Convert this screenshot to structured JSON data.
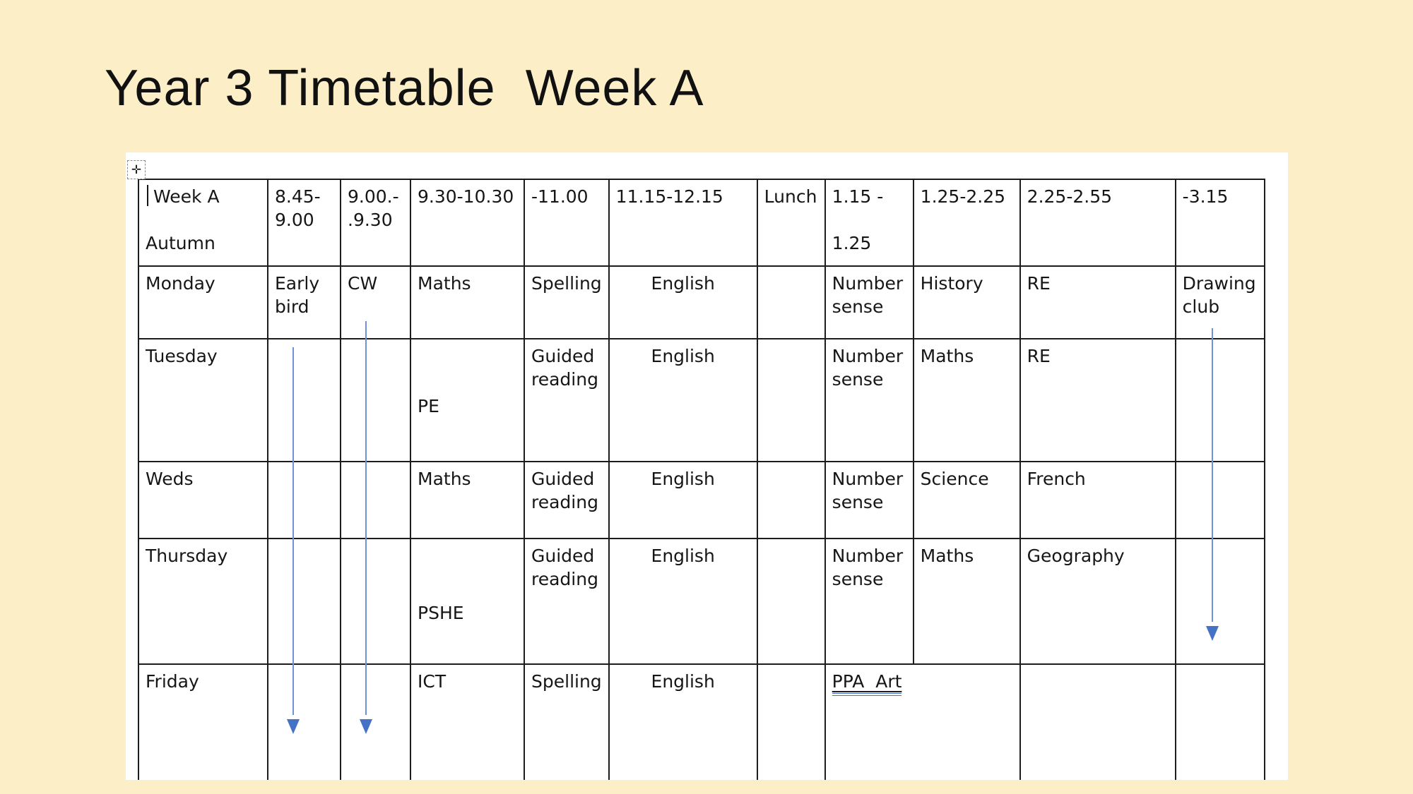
{
  "slide": {
    "title": "Year 3 Timetable  Week A"
  },
  "colors": {
    "background": "#FCEFC8",
    "page": "#FFFFFF",
    "table_border": "#1C1C1C",
    "arrow_line": "#6E92D8",
    "arrow_head": "#4472C4",
    "underline_blue": "#4472C4"
  },
  "icons": {
    "table_move_handle": "✛"
  },
  "table": {
    "header": [
      "Week A\n\nAutumn",
      "8.45-\n9.00",
      "9.00.-\n.9.30",
      "9.30-10.30",
      "-11.00",
      "11.15-12.15",
      "Lunch",
      "1.15 -\n\n1.25",
      "1.25-2.25",
      "2.25-2.55",
      "-3.15"
    ],
    "rows": [
      {
        "day": "Monday",
        "cells": [
          "Early bird",
          "CW",
          "Maths",
          "Spelling",
          "English",
          "",
          "Number sense",
          "History",
          "RE",
          "Drawing club"
        ]
      },
      {
        "day": "Tuesday",
        "cells": [
          "",
          "",
          "PE",
          "Guided reading",
          "English",
          "",
          "Number sense",
          "Maths",
          "RE",
          ""
        ]
      },
      {
        "day": "Weds",
        "cells": [
          "",
          "",
          "Maths",
          "Guided reading",
          "English",
          "",
          "Number sense",
          "Science",
          "French",
          ""
        ]
      },
      {
        "day": "Thursday",
        "cells": [
          "",
          "",
          "PSHE",
          "Guided reading",
          "English",
          "",
          "Number sense",
          "Maths",
          "Geography",
          ""
        ]
      },
      {
        "day": "Friday",
        "cells": [
          "",
          "",
          "ICT",
          "Spelling",
          "English",
          "",
          {
            "text": "PPA  Art",
            "colspan": 2,
            "underline": true
          },
          "",
          ""
        ]
      }
    ]
  }
}
